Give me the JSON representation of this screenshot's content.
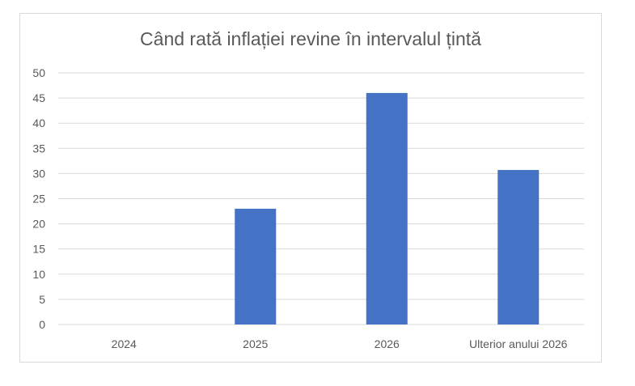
{
  "chart_data": {
    "type": "bar",
    "title": "Când rată inflației revine în intervalul țintă",
    "categories": [
      "2024",
      "2025",
      "2026",
      "Ulterior anului 2026"
    ],
    "values": [
      0,
      23,
      46,
      30.7
    ],
    "ylim": [
      0,
      50
    ],
    "yticks": [
      0,
      5,
      10,
      15,
      20,
      25,
      30,
      35,
      40,
      45,
      50
    ],
    "grid": true,
    "bar_color": "#4472c4",
    "grid_color": "#d9d9d9"
  }
}
